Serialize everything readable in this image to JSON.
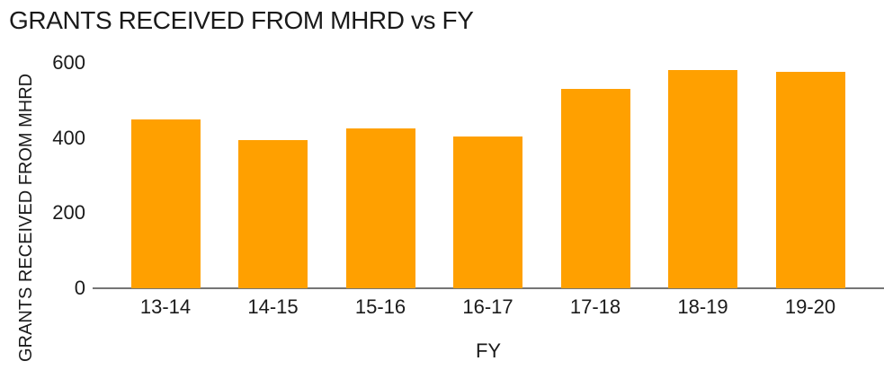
{
  "chart_data": {
    "type": "bar",
    "title": "GRANTS RECEIVED FROM MHRD vs FY",
    "xlabel": "FY",
    "ylabel": "GRANTS RECEIVED FROM MHRD",
    "categories": [
      "13-14",
      "14-15",
      "15-16",
      "16-17",
      "17-18",
      "18-19",
      "19-20"
    ],
    "values": [
      450,
      395,
      425,
      405,
      530,
      580,
      575
    ],
    "ylim": [
      0,
      600
    ],
    "yticks": [
      0,
      200,
      400,
      600
    ],
    "grid": false,
    "legend": false,
    "bar_color": "#FFA000",
    "axis_line_color": "#757575",
    "text_color": "#1a1a1a",
    "background_color": "#ffffff"
  }
}
